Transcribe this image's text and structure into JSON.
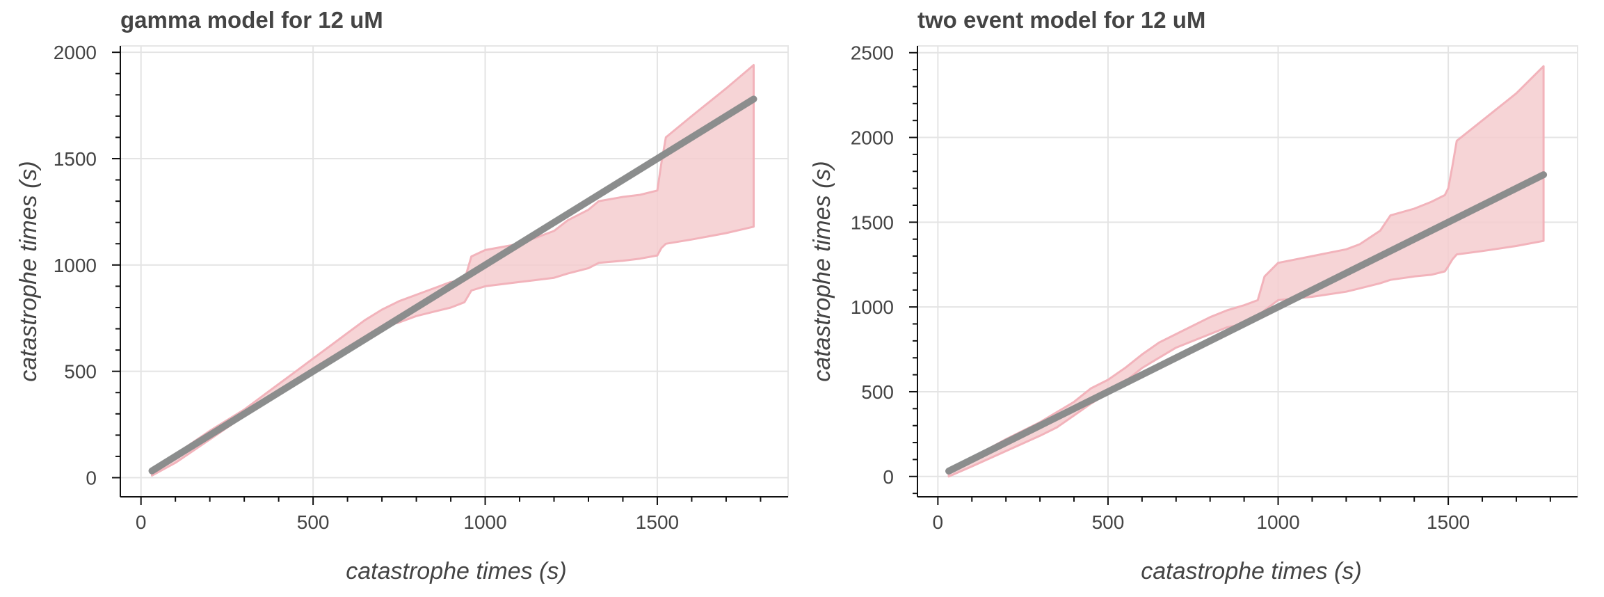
{
  "chart_data": [
    {
      "type": "line",
      "title": "gamma model for 12 uM",
      "xlabel": "catastrophe times (s)",
      "ylabel": "catastrophe times (s)",
      "xlim": [
        -60,
        1880
      ],
      "ylim": [
        -90,
        2030
      ],
      "xticks": [
        0,
        500,
        1000,
        1500
      ],
      "yticks": [
        0,
        500,
        1000,
        1500,
        2000
      ],
      "grid": true,
      "colors": {
        "band_fill": "#f4cccf",
        "band_edge": "#f2b3bb",
        "diagonal": "#93a8ab",
        "model_line": "#8a8a8a"
      },
      "series": [
        {
          "kind": "band",
          "x": [
            32,
            100,
            200,
            300,
            350,
            400,
            450,
            500,
            550,
            600,
            650,
            700,
            750,
            800,
            850,
            900,
            940,
            960,
            1000,
            1100,
            1200,
            1240,
            1300,
            1330,
            1400,
            1450,
            1500,
            1512,
            1525,
            1600,
            1700,
            1780
          ],
          "lower": [
            10,
            70,
            180,
            290,
            340,
            395,
            440,
            490,
            550,
            605,
            655,
            710,
            730,
            760,
            780,
            800,
            825,
            880,
            900,
            920,
            940,
            960,
            985,
            1010,
            1020,
            1030,
            1045,
            1080,
            1100,
            1120,
            1150,
            1180
          ],
          "upper": [
            40,
            110,
            220,
            320,
            380,
            440,
            500,
            560,
            620,
            680,
            740,
            790,
            830,
            860,
            890,
            920,
            930,
            1040,
            1070,
            1100,
            1160,
            1210,
            1260,
            1300,
            1320,
            1330,
            1350,
            1480,
            1600,
            1700,
            1830,
            1940
          ]
        },
        {
          "kind": "line",
          "role": "diagonal",
          "x": [
            32,
            1780
          ],
          "y": [
            32,
            1780
          ]
        },
        {
          "kind": "line",
          "role": "model",
          "x": [
            32,
            1780
          ],
          "y": [
            32,
            1780
          ]
        }
      ]
    },
    {
      "type": "line",
      "title": "two event model for 12 uM",
      "xlabel": "catastrophe times (s)",
      "ylabel": "catastrophe times (s)",
      "xlim": [
        -60,
        1880
      ],
      "ylim": [
        -120,
        2540
      ],
      "xticks": [
        0,
        500,
        1000,
        1500
      ],
      "yticks": [
        0,
        500,
        1000,
        1500,
        2000,
        2500
      ],
      "grid": true,
      "colors": {
        "band_fill": "#f4cccf",
        "band_edge": "#f2b3bb",
        "diagonal": "#93a8ab",
        "model_line": "#8a8a8a"
      },
      "series": [
        {
          "kind": "band",
          "x": [
            32,
            100,
            200,
            300,
            350,
            400,
            450,
            500,
            550,
            600,
            650,
            700,
            750,
            800,
            850,
            900,
            940,
            960,
            1000,
            1100,
            1200,
            1240,
            1300,
            1330,
            1400,
            1450,
            1490,
            1500,
            1512,
            1525,
            1600,
            1700,
            1780
          ],
          "lower": [
            0,
            60,
            150,
            240,
            290,
            360,
            430,
            490,
            560,
            640,
            700,
            760,
            800,
            840,
            880,
            900,
            925,
            980,
            1040,
            1060,
            1090,
            1110,
            1140,
            1160,
            1180,
            1190,
            1210,
            1240,
            1280,
            1310,
            1330,
            1360,
            1390
          ],
          "upper": [
            40,
            110,
            220,
            320,
            380,
            440,
            520,
            570,
            640,
            720,
            790,
            840,
            890,
            940,
            980,
            1010,
            1040,
            1180,
            1260,
            1300,
            1340,
            1370,
            1450,
            1540,
            1580,
            1620,
            1660,
            1700,
            1830,
            1980,
            2100,
            2260,
            2420
          ]
        },
        {
          "kind": "line",
          "role": "diagonal",
          "x": [
            32,
            1780
          ],
          "y": [
            32,
            1780
          ]
        },
        {
          "kind": "line",
          "role": "model",
          "x": [
            32,
            1780
          ],
          "y": [
            32,
            1780
          ]
        }
      ]
    }
  ]
}
